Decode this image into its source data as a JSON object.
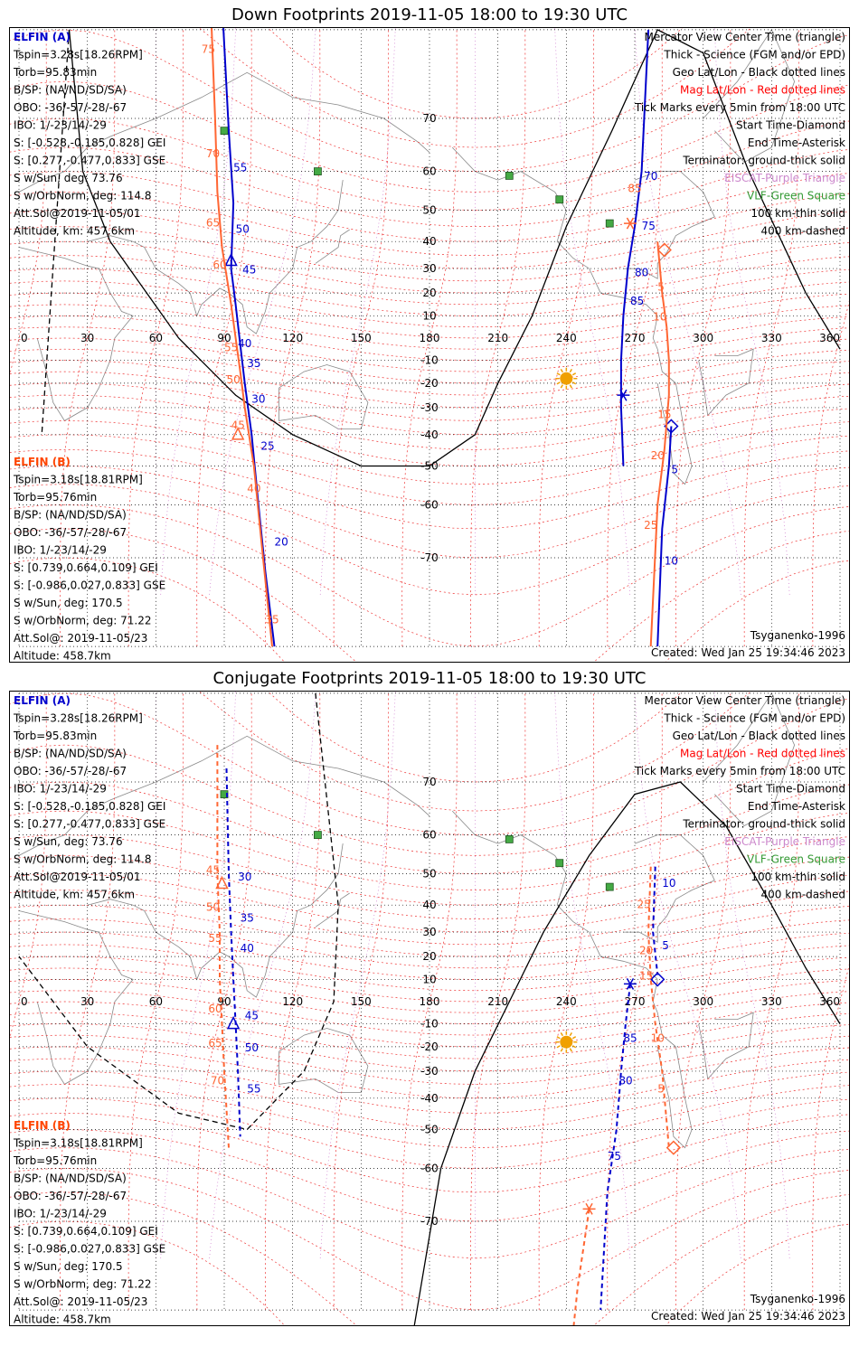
{
  "chart_data": [
    {
      "type": "line",
      "title": "Down Footprints 2019-11-05 18:00 to 19:30 UTC",
      "projection": "Mercator",
      "xlim": [
        0,
        360
      ],
      "ylim": [
        -80,
        80
      ],
      "x_ticks": [
        0,
        30,
        60,
        90,
        120,
        150,
        180,
        210,
        240,
        270,
        300,
        330,
        360
      ],
      "y_ticks": [
        70,
        60,
        50,
        40,
        30,
        20,
        10,
        -10,
        -20,
        -30,
        -40,
        -50,
        -60,
        -70
      ],
      "grid": true,
      "info_a": [
        "ELFIN (A)",
        "Tspin=3.28s[18.26RPM]",
        "Torb=95.83min",
        "B/SP: (NA/ND/SD/SA)",
        "OBO: -36/-57/-28/-67",
        "IBO: 1/-23/14/-29",
        "S: [-0.528,-0.185,0.828] GEI",
        "S: [0.277,-0.477,0.833] GSE",
        "S w/Sun, deg: 73.76",
        "S w/OrbNorm, deg: 114.8",
        "Att.Sol@2019-11-05/01",
        "Altitude, km: 457.6km"
      ],
      "info_b": [
        "ELFIN (B)",
        "Tspin=3.18s[18.81RPM]",
        "Torb=95.76min",
        "B/SP: (NA/ND/SD/SA)",
        "OBO: -36/-57/-28/-67",
        "IBO: 1/-23/14/-29",
        "S: [0.739,0.664,0.109] GEI",
        "S: [-0.986,0.027,0.833] GSE",
        "S w/Sun, deg: 170.5",
        "S w/OrbNorm, deg: 71.22",
        "Att.Sol@: 2019-11-05/23",
        "Altitude: 458.7km"
      ],
      "legend": [
        "Mercator View Center Time (triangle)",
        "Thick - Science (FGM and/or EPD)",
        "Geo Lat/Lon - Black dotted lines",
        "Mag Lat/Lon - Red dotted lines",
        "Tick Marks every 5min from 18:00 UTC",
        "Start Time-Diamond",
        "End Time-Asterisk",
        "Terminator: ground-thick solid",
        "EISCAT-Purple Triangle",
        "VLF-Green Square",
        "100 km-thin solid",
        "400 km-dashed"
      ],
      "legend_colors": [
        "#000000",
        "#000000",
        "#000000",
        "#ff0000",
        "#000000",
        "#000000",
        "#000000",
        "#000000",
        "#cc88cc",
        "#339933",
        "#000000",
        "#000000"
      ],
      "footer_left": "Tsyganenko-1996",
      "footer_right": "Created: Wed Jan 25 19:34:46 2023",
      "series": [
        {
          "name": "ELFIN (A)",
          "color": "#0000cc",
          "dashed": false,
          "west_track": [
            [
              89,
              82
            ],
            [
              92,
              68
            ],
            [
              94,
              52
            ],
            [
              93,
              30
            ],
            [
              95,
              15
            ],
            [
              97,
              -3
            ],
            [
              99,
              -20
            ],
            [
              102,
              -40
            ],
            [
              105,
              -60
            ],
            [
              108,
              -72
            ],
            [
              112,
              -80
            ]
          ],
          "west_labels": [
            {
              "t": "55",
              "lon": 94,
              "lat": 60
            },
            {
              "t": "50",
              "lon": 95,
              "lat": 43
            },
            {
              "t": "45",
              "lon": 98,
              "lat": 28
            },
            {
              "t": "40",
              "lon": 96,
              "lat": -4
            },
            {
              "t": "35",
              "lon": 100,
              "lat": -13
            },
            {
              "t": "30",
              "lon": 102,
              "lat": -28
            },
            {
              "t": "25",
              "lon": 106,
              "lat": -45
            },
            {
              "t": "20",
              "lon": 112,
              "lat": -68
            }
          ],
          "east_track": [
            [
              276,
              80
            ],
            [
              273,
              60
            ],
            [
              270,
              45
            ],
            [
              267,
              30
            ],
            [
              265,
              10
            ],
            [
              264,
              -10
            ],
            [
              264,
              -30
            ],
            [
              265,
              -50
            ]
          ],
          "east_labels": [
            {
              "t": "70",
              "lon": 274,
              "lat": 58
            },
            {
              "t": "75",
              "lon": 273,
              "lat": 44
            },
            {
              "t": "80",
              "lon": 270,
              "lat": 27
            },
            {
              "t": "85",
              "lon": 268,
              "lat": 15
            }
          ],
          "track2": [
            [
              286,
              -37
            ],
            [
              285,
              -50
            ],
            [
              282,
              -65
            ],
            [
              280,
              -80
            ]
          ],
          "track2_labels": [
            {
              "t": "5",
              "lon": 286,
              "lat": -52
            },
            {
              "t": "10",
              "lon": 283,
              "lat": -71
            }
          ],
          "start_marker": [
            286,
            -37
          ],
          "end_marker": [
            265,
            -25
          ],
          "center_marker": [
            93,
            33
          ]
        },
        {
          "name": "ELFIN (B)",
          "color": "#ff6633",
          "dashed": false,
          "west_track": [
            [
              84,
              82
            ],
            [
              86,
              70
            ],
            [
              87,
              55
            ],
            [
              89,
              38
            ],
            [
              93,
              15
            ],
            [
              95,
              0
            ],
            [
              97,
              -15
            ],
            [
              99,
              -30
            ],
            [
              103,
              -50
            ],
            [
              107,
              -70
            ],
            [
              111,
              -80
            ]
          ],
          "west_labels": [
            {
              "t": "75",
              "lon": 80,
              "lat": 78
            },
            {
              "t": "70",
              "lon": 82,
              "lat": 63
            },
            {
              "t": "65",
              "lon": 82,
              "lat": 45
            },
            {
              "t": "60",
              "lon": 85,
              "lat": 30
            },
            {
              "t": "55",
              "lon": 90,
              "lat": -6
            },
            {
              "t": "50",
              "lon": 91,
              "lat": -20
            },
            {
              "t": "45",
              "lon": 93,
              "lat": -38
            },
            {
              "t": "40",
              "lon": 100,
              "lat": -57
            },
            {
              "t": "35",
              "lon": 108,
              "lat": -78
            }
          ],
          "east_track": [
            [
              280,
              40
            ],
            [
              282,
              20
            ],
            [
              284,
              5
            ],
            [
              285,
              -10
            ],
            [
              285,
              -25
            ],
            [
              283,
              -45
            ],
            [
              280,
              -60
            ],
            [
              277,
              -80
            ]
          ],
          "east_labels": [
            {
              "t": "85",
              "lon": 267,
              "lat": 55
            },
            {
              "t": "5",
              "lon": 280,
              "lat": 21
            },
            {
              "t": "10",
              "lon": 278,
              "lat": 8
            },
            {
              "t": "15",
              "lon": 280,
              "lat": -34
            },
            {
              "t": "20",
              "lon": 277,
              "lat": -48
            },
            {
              "t": "25",
              "lon": 274,
              "lat": -65
            }
          ],
          "start_marker": [
            283,
            37
          ],
          "end_marker": [
            268,
            46
          ],
          "center_marker": [
            96,
            -40
          ]
        }
      ],
      "vlf_stations": [
        [
          90,
          68
        ],
        [
          131,
          60
        ],
        [
          215,
          59
        ],
        [
          237,
          53
        ],
        [
          259,
          46
        ]
      ],
      "sun": [
        240,
        -18
      ],
      "terminator_solid": [
        [
          22,
          80
        ],
        [
          28,
          60
        ],
        [
          40,
          40
        ],
        [
          70,
          0
        ],
        [
          95,
          -25
        ],
        [
          120,
          -40
        ],
        [
          150,
          -50
        ],
        [
          180,
          -50
        ],
        [
          200,
          -40
        ],
        [
          210,
          -20
        ],
        [
          225,
          10
        ],
        [
          240,
          45
        ],
        [
          260,
          68
        ],
        [
          280,
          80
        ],
        [
          300,
          78
        ],
        [
          320,
          60
        ],
        [
          345,
          20
        ],
        [
          360,
          -5
        ]
      ],
      "terminator_dashed": [
        [
          22,
          80
        ],
        [
          10,
          -40
        ]
      ]
    },
    {
      "type": "line",
      "title": "Conjugate Footprints 2019-11-05 18:00 to 19:30 UTC",
      "projection": "Mercator",
      "xlim": [
        0,
        360
      ],
      "ylim": [
        -80,
        80
      ],
      "x_ticks": [
        0,
        30,
        60,
        90,
        120,
        150,
        180,
        210,
        240,
        270,
        300,
        330,
        360
      ],
      "y_ticks": [
        70,
        60,
        50,
        40,
        30,
        20,
        10,
        -10,
        -20,
        -30,
        -40,
        -50,
        -60,
        -70
      ],
      "grid": true,
      "info_a": [
        "ELFIN (A)",
        "Tspin=3.28s[18.26RPM]",
        "Torb=95.83min",
        "B/SP: (NA/ND/SD/SA)",
        "OBO: -36/-57/-28/-67",
        "IBO: 1/-23/14/-29",
        "S: [-0.528,-0.185,0.828] GEI",
        "S: [0.277,-0.477,0.833] GSE",
        "S w/Sun, deg: 73.76",
        "S w/OrbNorm, deg: 114.8",
        "Att.Sol@2019-11-05/01",
        "Altitude, km: 457.6km"
      ],
      "info_b": [
        "ELFIN (B)",
        "Tspin=3.18s[18.81RPM]",
        "Torb=95.76min",
        "B/SP: (NA/ND/SD/SA)",
        "OBO: -36/-57/-28/-67",
        "IBO: 1/-23/14/-29",
        "S: [0.739,0.664,0.109] GEI",
        "S: [-0.986,0.027,0.833] GSE",
        "S w/Sun, deg: 170.5",
        "S w/OrbNorm, deg: 71.22",
        "Att.Sol@: 2019-11-05/23",
        "Altitude: 458.7km"
      ],
      "legend": [
        "Mercator View Center Time (triangle)",
        "Thick - Science (FGM and/or EPD)",
        "Geo Lat/Lon - Black dotted lines",
        "Mag Lat/Lon - Red dotted lines",
        "Tick Marks every 5min from 18:00 UTC",
        "Start Time-Diamond",
        "End Time-Asterisk",
        "Terminator: ground-thick solid",
        "EISCAT-Purple Triangle",
        "VLF-Green Square",
        "100 km-thin solid",
        "400 km-dashed"
      ],
      "legend_colors": [
        "#000000",
        "#000000",
        "#000000",
        "#ff0000",
        "#000000",
        "#000000",
        "#000000",
        "#000000",
        "#cc88cc",
        "#339933",
        "#000000",
        "#000000"
      ],
      "footer_left": "Tsyganenko-1996",
      "footer_right": "Created: Wed Jan 25 19:34:46 2023",
      "series": [
        {
          "name": "ELFIN (A)",
          "color": "#0000cc",
          "dashed": true,
          "west_track": [
            [
              91,
              72
            ],
            [
              92,
              50
            ],
            [
              93,
              30
            ],
            [
              94,
              10
            ],
            [
              95,
              -10
            ],
            [
              96,
              -30
            ],
            [
              97,
              -52
            ]
          ],
          "west_labels": [
            {
              "t": "30",
              "lon": 96,
              "lat": 48
            },
            {
              "t": "35",
              "lon": 97,
              "lat": 34
            },
            {
              "t": "40",
              "lon": 97,
              "lat": 22
            },
            {
              "t": "45",
              "lon": 99,
              "lat": -8
            },
            {
              "t": "50",
              "lon": 99,
              "lat": -22
            },
            {
              "t": "55",
              "lon": 100,
              "lat": -38
            }
          ],
          "east_track": [
            [
              268,
              8
            ],
            [
              266,
              -10
            ],
            [
              264,
              -30
            ],
            [
              262,
              -50
            ],
            [
              258,
              -65
            ],
            [
              255,
              -80
            ]
          ],
          "east_labels": [
            {
              "t": "85",
              "lon": 265,
              "lat": -18
            },
            {
              "t": "80",
              "lon": 263,
              "lat": -35
            },
            {
              "t": "75",
              "lon": 258,
              "lat": -58
            }
          ],
          "track2": [
            [
              279,
              52
            ],
            [
              278,
              30
            ],
            [
              280,
              12
            ]
          ],
          "track2_labels": [
            {
              "t": "10",
              "lon": 282,
              "lat": 46
            },
            {
              "t": "5",
              "lon": 282,
              "lat": 23
            }
          ],
          "start_marker": [
            280,
            10
          ],
          "end_marker": [
            268,
            8
          ],
          "center_marker": [
            94,
            -10
          ]
        },
        {
          "name": "ELFIN (B)",
          "color": "#ff6633",
          "dashed": true,
          "west_track": [
            [
              87,
              75
            ],
            [
              87,
              50
            ],
            [
              88,
              30
            ],
            [
              88,
              10
            ],
            [
              89,
              -10
            ],
            [
              90,
              -30
            ],
            [
              92,
              -55
            ]
          ],
          "west_labels": [
            {
              "t": "45",
              "lon": 82,
              "lat": 50
            },
            {
              "t": "50",
              "lon": 82,
              "lat": 38
            },
            {
              "t": "55",
              "lon": 83,
              "lat": 26
            },
            {
              "t": "60",
              "lon": 83,
              "lat": -5
            },
            {
              "t": "65",
              "lon": 83,
              "lat": -20
            },
            {
              "t": "70",
              "lon": 84,
              "lat": -35
            }
          ],
          "east_track": [
            [
              277,
              52
            ],
            [
              276,
              30
            ],
            [
              277,
              10
            ],
            [
              279,
              -10
            ],
            [
              282,
              -30
            ],
            [
              285,
              -55
            ]
          ],
          "east_labels": [
            {
              "t": "25",
              "lon": 271,
              "lat": 39
            },
            {
              "t": "20",
              "lon": 272,
              "lat": 21
            },
            {
              "t": "15",
              "lon": 272,
              "lat": 10
            },
            {
              "t": "10",
              "lon": 277,
              "lat": -18
            },
            {
              "t": "5",
              "lon": 280,
              "lat": -38
            }
          ],
          "track3": [
            [
              250,
              -68
            ],
            [
              245,
              -78
            ],
            [
              240,
              -85
            ]
          ],
          "start_marker": [
            287,
            -55
          ],
          "end_marker": [
            250,
            -68
          ],
          "center_marker": [
            89,
            47
          ]
        }
      ],
      "vlf_stations": [
        [
          90,
          68
        ],
        [
          131,
          60
        ],
        [
          215,
          59
        ],
        [
          237,
          53
        ],
        [
          259,
          46
        ]
      ],
      "sun": [
        240,
        -18
      ],
      "terminator_solid": [
        [
          168,
          -85
        ],
        [
          185,
          -60
        ],
        [
          200,
          -30
        ],
        [
          215,
          0
        ],
        [
          230,
          30
        ],
        [
          250,
          55
        ],
        [
          270,
          68
        ],
        [
          290,
          70
        ],
        [
          310,
          62
        ],
        [
          330,
          40
        ],
        [
          345,
          15
        ],
        [
          360,
          -10
        ]
      ],
      "terminator_dashed": [
        [
          130,
          80
        ],
        [
          140,
          40
        ],
        [
          138,
          0
        ],
        [
          125,
          -30
        ],
        [
          100,
          -50
        ],
        [
          70,
          -45
        ],
        [
          30,
          -20
        ],
        [
          0,
          20
        ]
      ]
    }
  ]
}
